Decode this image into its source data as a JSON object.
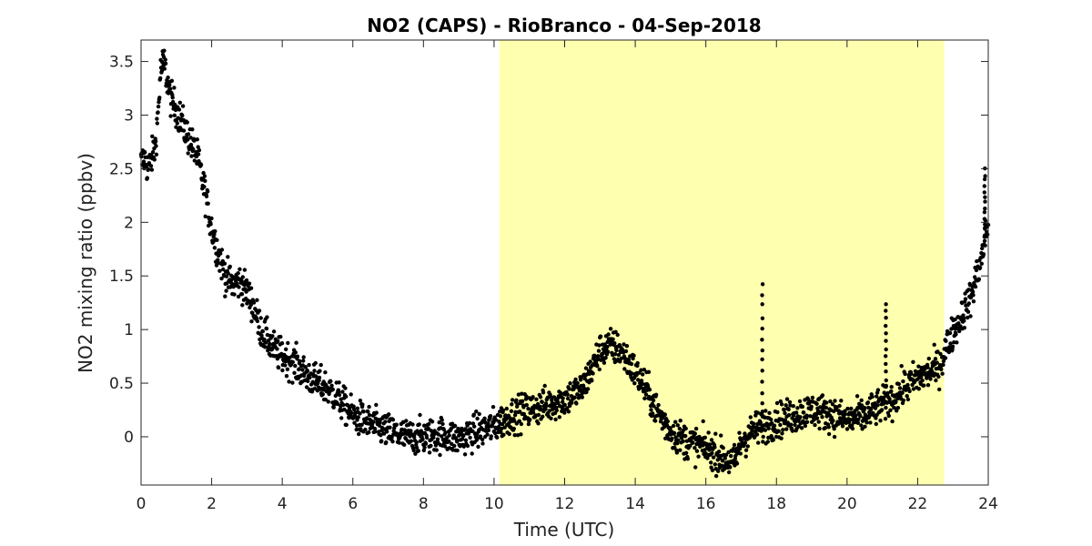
{
  "chart_data": {
    "type": "scatter",
    "title": "NO2 (CAPS) - RioBranco - 04-Sep-2018",
    "xlabel": "Time (UTC)",
    "ylabel": "NO2 mixing ratio (ppbv)",
    "xlim": [
      0,
      24
    ],
    "ylim": [
      -0.45,
      3.7
    ],
    "xticks": [
      0,
      2,
      4,
      6,
      8,
      10,
      12,
      14,
      16,
      18,
      20,
      22,
      24
    ],
    "yticks": [
      0,
      0.5,
      1,
      1.5,
      2,
      2.5,
      3,
      3.5
    ],
    "xtick_labels": [
      "0",
      "2",
      "4",
      "6",
      "8",
      "10",
      "12",
      "14",
      "16",
      "18",
      "20",
      "22",
      "24"
    ],
    "ytick_labels": [
      "0",
      "0.5",
      "1",
      "1.5",
      "2",
      "2.5",
      "3",
      "3.5"
    ],
    "grid": false,
    "legend": "none",
    "shaded_region": {
      "x": [
        10.15,
        22.75
      ],
      "color": "#ffffb0"
    },
    "marker_color": "#000000",
    "series": [
      {
        "values": [
          [
            0.0,
            2.55
          ],
          [
            0.1,
            2.6
          ],
          [
            0.2,
            2.5
          ],
          [
            0.3,
            2.6
          ],
          [
            0.4,
            2.7
          ],
          [
            0.5,
            3.1
          ],
          [
            0.55,
            3.4
          ],
          [
            0.65,
            3.5
          ],
          [
            0.75,
            3.3
          ],
          [
            0.85,
            3.15
          ],
          [
            1.0,
            3.05
          ],
          [
            1.2,
            2.9
          ],
          [
            1.4,
            2.75
          ],
          [
            1.6,
            2.6
          ],
          [
            1.8,
            2.3
          ],
          [
            2.0,
            1.95
          ],
          [
            2.2,
            1.7
          ],
          [
            2.4,
            1.5
          ],
          [
            2.6,
            1.42
          ],
          [
            2.8,
            1.45
          ],
          [
            3.0,
            1.35
          ],
          [
            3.2,
            1.2
          ],
          [
            3.4,
            1.0
          ],
          [
            3.6,
            0.9
          ],
          [
            3.8,
            0.8
          ],
          [
            4.0,
            0.75
          ],
          [
            4.3,
            0.7
          ],
          [
            4.6,
            0.6
          ],
          [
            5.0,
            0.5
          ],
          [
            5.3,
            0.45
          ],
          [
            5.6,
            0.35
          ],
          [
            6.0,
            0.2
          ],
          [
            6.5,
            0.12
          ],
          [
            7.0,
            0.05
          ],
          [
            7.5,
            0.0
          ],
          [
            8.0,
            0.0
          ],
          [
            8.5,
            0.02
          ],
          [
            9.0,
            -0.02
          ],
          [
            9.5,
            0.05
          ],
          [
            10.0,
            0.1
          ],
          [
            10.5,
            0.2
          ],
          [
            11.0,
            0.25
          ],
          [
            11.5,
            0.3
          ],
          [
            12.0,
            0.35
          ],
          [
            12.5,
            0.45
          ],
          [
            12.8,
            0.65
          ],
          [
            13.0,
            0.8
          ],
          [
            13.3,
            0.85
          ],
          [
            13.6,
            0.8
          ],
          [
            14.0,
            0.6
          ],
          [
            14.3,
            0.45
          ],
          [
            14.6,
            0.25
          ],
          [
            15.0,
            0.05
          ],
          [
            15.5,
            -0.05
          ],
          [
            16.0,
            -0.1
          ],
          [
            16.5,
            -0.2
          ],
          [
            16.8,
            -0.25
          ],
          [
            17.0,
            -0.05
          ],
          [
            17.3,
            0.05
          ],
          [
            17.6,
            0.1
          ],
          [
            18.0,
            0.15
          ],
          [
            18.5,
            0.2
          ],
          [
            19.0,
            0.25
          ],
          [
            19.5,
            0.22
          ],
          [
            20.0,
            0.15
          ],
          [
            20.5,
            0.2
          ],
          [
            21.0,
            0.3
          ],
          [
            21.3,
            0.35
          ],
          [
            21.6,
            0.45
          ],
          [
            22.0,
            0.55
          ],
          [
            22.3,
            0.6
          ],
          [
            22.6,
            0.65
          ],
          [
            22.9,
            0.9
          ],
          [
            23.2,
            1.1
          ],
          [
            23.5,
            1.3
          ],
          [
            23.8,
            1.65
          ],
          [
            24.0,
            2.0
          ]
        ]
      }
    ],
    "spikes": [
      {
        "x": 17.6,
        "y_max": 1.42
      },
      {
        "x": 21.1,
        "y_max": 1.25
      },
      {
        "x": 23.9,
        "y_max": 2.5
      }
    ]
  }
}
